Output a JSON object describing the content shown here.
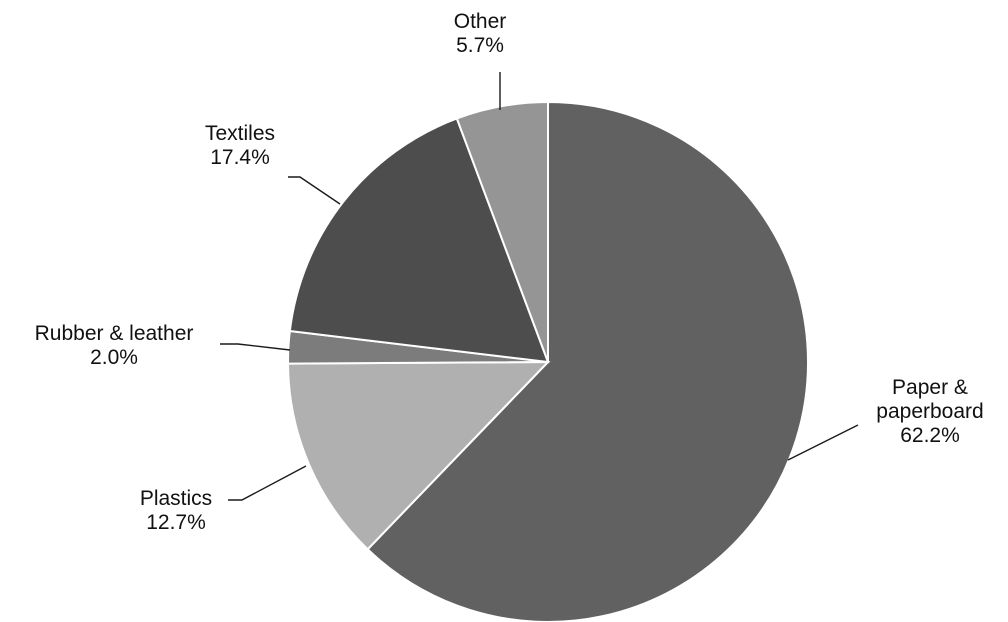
{
  "chart_data": {
    "type": "pie",
    "title": "",
    "start_angle_deg": 0,
    "direction": "clockwise",
    "slices": [
      {
        "name": "Paper & paperboard",
        "label_lines": [
          "Paper &",
          "paperboard"
        ],
        "value": 62.2,
        "value_label": "62.2%",
        "color": "#616161"
      },
      {
        "name": "Plastics",
        "label_lines": [
          "Plastics"
        ],
        "value": 12.7,
        "value_label": "12.7%",
        "color": "#b0b0b0"
      },
      {
        "name": "Rubber & leather",
        "label_lines": [
          "Rubber & leather"
        ],
        "value": 2.0,
        "value_label": "2.0%",
        "color": "#7c7c7c"
      },
      {
        "name": "Textiles",
        "label_lines": [
          "Textiles"
        ],
        "value": 17.4,
        "value_label": "17.4%",
        "color": "#4d4d4d"
      },
      {
        "name": "Other",
        "label_lines": [
          "Other"
        ],
        "value": 5.7,
        "value_label": "5.7%",
        "color": "#959595"
      }
    ]
  }
}
